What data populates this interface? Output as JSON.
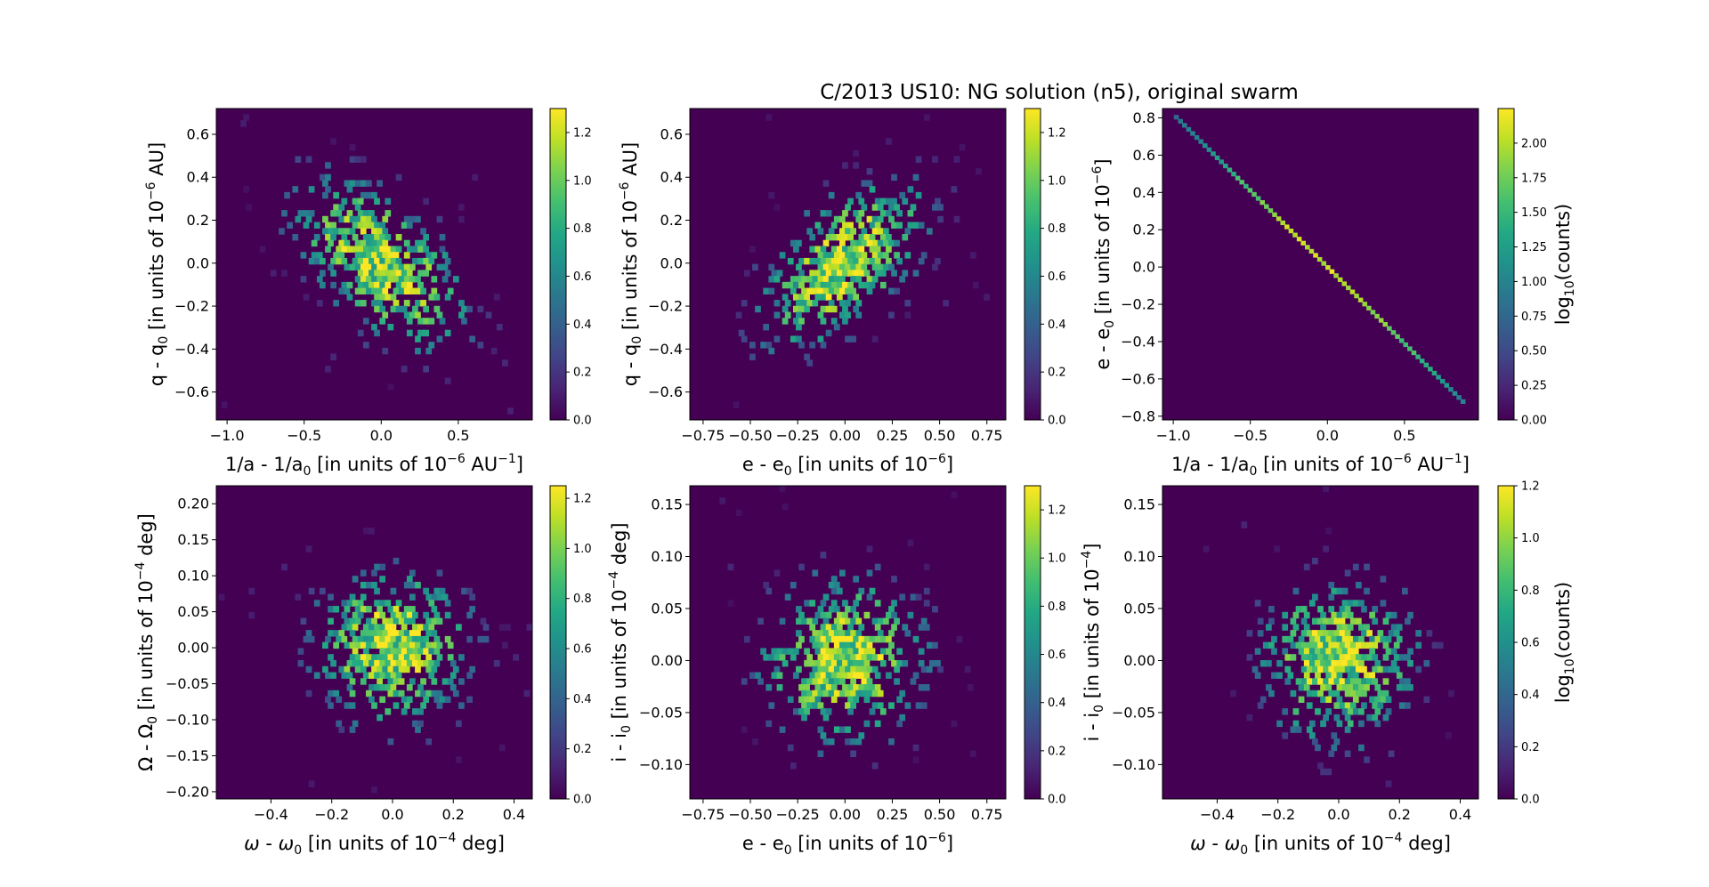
{
  "figure": {
    "title": "C/2013 US10: NG solution (n5), original swarm"
  },
  "palette": {
    "background": "#440154",
    "viridis": [
      "#440154",
      "#482475",
      "#414487",
      "#355f8d",
      "#2a788e",
      "#21918c",
      "#22a884",
      "#44bf70",
      "#7ad151",
      "#bddf26",
      "#fde725"
    ]
  },
  "chart_data": [
    {
      "type": "heatmap",
      "panel": "top-left",
      "xlabel": "1/a - 1/a",
      "xlabel_sub": "0",
      "xlabel_tail": " [in units of 10",
      "xlabel_sup": "−6",
      "xlabel_end": " AU",
      "xlabel_sup2": "−1",
      "xlabel_close": "]",
      "ylabel": "q - q",
      "ylabel_sub": "0",
      "ylabel_tail": " [in units of 10",
      "ylabel_sup": "−6",
      "ylabel_end": " AU]",
      "xlim": [
        -1.07,
        0.98
      ],
      "ylim": [
        -0.73,
        0.72
      ],
      "xticks": [
        -1.0,
        -0.5,
        0.0,
        0.5
      ],
      "xtick_labels": [
        "−1.0",
        "−0.5",
        "0.0",
        "0.5"
      ],
      "yticks": [
        -0.6,
        -0.4,
        -0.2,
        0.0,
        0.2,
        0.4,
        0.6
      ],
      "ytick_labels": [
        "−0.6",
        "−0.4",
        "−0.2",
        "0.0",
        "0.2",
        "0.4",
        "0.6"
      ],
      "distribution": {
        "sx": 0.28,
        "sy": 0.2,
        "rho": -0.55,
        "peak": 1.3
      },
      "colorbar": {
        "ticks": [
          0.0,
          0.2,
          0.4,
          0.6,
          0.8,
          1.0,
          1.2
        ],
        "tick_labels": [
          "0.0",
          "0.2",
          "0.4",
          "0.6",
          "0.8",
          "1.0",
          "1.2"
        ],
        "max": 1.3,
        "label": ""
      }
    },
    {
      "type": "heatmap",
      "panel": "top-middle",
      "xlabel": "e - e",
      "xlabel_sub": "0",
      "xlabel_tail": " [in units of 10",
      "xlabel_sup": "−6",
      "xlabel_end": "]",
      "xlabel_sup2": "",
      "xlabel_close": "",
      "ylabel": "q - q",
      "ylabel_sub": "0",
      "ylabel_tail": " [in units of 10",
      "ylabel_sup": "−6",
      "ylabel_end": " AU]",
      "xlim": [
        -0.82,
        0.85
      ],
      "ylim": [
        -0.73,
        0.72
      ],
      "xticks": [
        -0.75,
        -0.5,
        -0.25,
        0.0,
        0.25,
        0.5,
        0.75
      ],
      "xtick_labels": [
        "−0.75",
        "−0.50",
        "−0.25",
        "0.00",
        "0.25",
        "0.50",
        "0.75"
      ],
      "yticks": [
        -0.6,
        -0.4,
        -0.2,
        0.0,
        0.2,
        0.4,
        0.6
      ],
      "ytick_labels": [
        "−0.6",
        "−0.4",
        "−0.2",
        "0.0",
        "0.2",
        "0.4",
        "0.6"
      ],
      "distribution": {
        "sx": 0.22,
        "sy": 0.2,
        "rho": 0.55,
        "peak": 1.3
      },
      "colorbar": {
        "ticks": [
          0.0,
          0.2,
          0.4,
          0.6,
          0.8,
          1.0,
          1.2
        ],
        "tick_labels": [
          "0.0",
          "0.2",
          "0.4",
          "0.6",
          "0.8",
          "1.0",
          "1.2"
        ],
        "max": 1.3,
        "label": ""
      }
    },
    {
      "type": "heatmap",
      "panel": "top-right",
      "xlabel": "1/a - 1/a",
      "xlabel_sub": "0",
      "xlabel_tail": " [in units of 10",
      "xlabel_sup": "−6",
      "xlabel_end": " AU",
      "xlabel_sup2": "−1",
      "xlabel_close": "]",
      "ylabel": "e - e",
      "ylabel_sub": "0",
      "ylabel_tail": " [in units of 10",
      "ylabel_sup": "−6",
      "ylabel_end": "]",
      "xlim": [
        -1.07,
        0.98
      ],
      "ylim": [
        -0.82,
        0.85
      ],
      "xticks": [
        -1.0,
        -0.5,
        0.0,
        0.5
      ],
      "xtick_labels": [
        "−1.0",
        "−0.5",
        "0.0",
        "0.5"
      ],
      "yticks": [
        -0.8,
        -0.6,
        -0.4,
        -0.2,
        0.0,
        0.2,
        0.4,
        0.6,
        0.8
      ],
      "ytick_labels": [
        "−0.8",
        "−0.6",
        "−0.4",
        "−0.2",
        "0.0",
        "0.2",
        "0.4",
        "0.6",
        "0.8"
      ],
      "distribution": {
        "line": true,
        "slope": -0.82,
        "x0": -0.98,
        "x1": 0.88,
        "peak": 2.25
      },
      "colorbar": {
        "ticks": [
          0.0,
          0.25,
          0.5,
          0.75,
          1.0,
          1.25,
          1.5,
          1.75,
          2.0
        ],
        "tick_labels": [
          "0.00",
          "0.25",
          "0.50",
          "0.75",
          "1.00",
          "1.25",
          "1.50",
          "1.75",
          "2.00"
        ],
        "max": 2.25,
        "label": "log",
        "label_sub": "10",
        "label_tail": "(counts)"
      }
    },
    {
      "type": "heatmap",
      "panel": "bottom-left",
      "xlabel_greek": "ω",
      "xlabel": " - ",
      "xlabel_greek2": "ω",
      "xlabel_sub": "0",
      "xlabel_tail": " [in units of 10",
      "xlabel_sup": "−4",
      "xlabel_end": " deg]",
      "ylabel": "Ω - Ω",
      "ylabel_sub": "0",
      "ylabel_tail": " [in units of 10",
      "ylabel_sup": "−4",
      "ylabel_end": " deg]",
      "xlim": [
        -0.58,
        0.46
      ],
      "ylim": [
        -0.21,
        0.225
      ],
      "xticks": [
        -0.4,
        -0.2,
        0.0,
        0.2,
        0.4
      ],
      "xtick_labels": [
        "−0.4",
        "−0.2",
        "0.0",
        "0.2",
        "0.4"
      ],
      "yticks": [
        -0.2,
        -0.15,
        -0.1,
        -0.05,
        0.0,
        0.05,
        0.1,
        0.15,
        0.2
      ],
      "ytick_labels": [
        "−0.20",
        "−0.15",
        "−0.10",
        "−0.05",
        "0.00",
        "0.05",
        "0.10",
        "0.15",
        "0.20"
      ],
      "distribution": {
        "sx": 0.13,
        "sy": 0.055,
        "rho": 0.0,
        "peak": 1.25
      },
      "colorbar": {
        "ticks": [
          0.0,
          0.2,
          0.4,
          0.6,
          0.8,
          1.0,
          1.2
        ],
        "tick_labels": [
          "0.0",
          "0.2",
          "0.4",
          "0.6",
          "0.8",
          "1.0",
          "1.2"
        ],
        "max": 1.25,
        "label": ""
      }
    },
    {
      "type": "heatmap",
      "panel": "bottom-middle",
      "xlabel": "e - e",
      "xlabel_sub": "0",
      "xlabel_tail": " [in units of 10",
      "xlabel_sup": "−6",
      "xlabel_end": "]",
      "ylabel": "i - i",
      "ylabel_sub": "0",
      "ylabel_tail": " [in units of 10",
      "ylabel_sup": "−4",
      "ylabel_end": " deg]",
      "xlim": [
        -0.82,
        0.85
      ],
      "ylim": [
        -0.133,
        0.168
      ],
      "xticks": [
        -0.75,
        -0.5,
        -0.25,
        0.0,
        0.25,
        0.5,
        0.75
      ],
      "xtick_labels": [
        "−0.75",
        "−0.50",
        "−0.25",
        "0.00",
        "0.25",
        "0.50",
        "0.75"
      ],
      "yticks": [
        -0.1,
        -0.05,
        0.0,
        0.05,
        0.1,
        0.15
      ],
      "ytick_labels": [
        "−0.10",
        "−0.05",
        "0.00",
        "0.05",
        "0.10",
        "0.15"
      ],
      "distribution": {
        "sx": 0.22,
        "sy": 0.04,
        "rho": 0.0,
        "peak": 1.3
      },
      "colorbar": {
        "ticks": [
          0.0,
          0.2,
          0.4,
          0.6,
          0.8,
          1.0,
          1.2
        ],
        "tick_labels": [
          "0.0",
          "0.2",
          "0.4",
          "0.6",
          "0.8",
          "1.0",
          "1.2"
        ],
        "max": 1.3,
        "label": ""
      }
    },
    {
      "type": "heatmap",
      "panel": "bottom-right",
      "xlabel_greek": "ω",
      "xlabel": " - ",
      "xlabel_greek2": "ω",
      "xlabel_sub": "0",
      "xlabel_tail": " [in units of 10",
      "xlabel_sup": "−4",
      "xlabel_end": " deg]",
      "ylabel": "i - i",
      "ylabel_sub": "0",
      "ylabel_tail": " [in units of 10",
      "ylabel_sup": "−4",
      "ylabel_end": "]",
      "xlim": [
        -0.58,
        0.46
      ],
      "ylim": [
        -0.133,
        0.168
      ],
      "xticks": [
        -0.4,
        -0.2,
        0.0,
        0.2,
        0.4
      ],
      "xtick_labels": [
        "−0.4",
        "−0.2",
        "0.0",
        "0.2",
        "0.4"
      ],
      "yticks": [
        -0.1,
        -0.05,
        0.0,
        0.05,
        0.1,
        0.15
      ],
      "ytick_labels": [
        "−0.10",
        "−0.05",
        "0.00",
        "0.05",
        "0.10",
        "0.15"
      ],
      "distribution": {
        "sx": 0.13,
        "sy": 0.04,
        "rho": 0.0,
        "peak": 1.2
      },
      "colorbar": {
        "ticks": [
          0.0,
          0.2,
          0.4,
          0.6,
          0.8,
          1.0,
          1.2
        ],
        "tick_labels": [
          "0.0",
          "0.2",
          "0.4",
          "0.6",
          "0.8",
          "1.0",
          "1.2"
        ],
        "max": 1.2,
        "label": "log",
        "label_sub": "10",
        "label_tail": "(counts)"
      }
    }
  ]
}
